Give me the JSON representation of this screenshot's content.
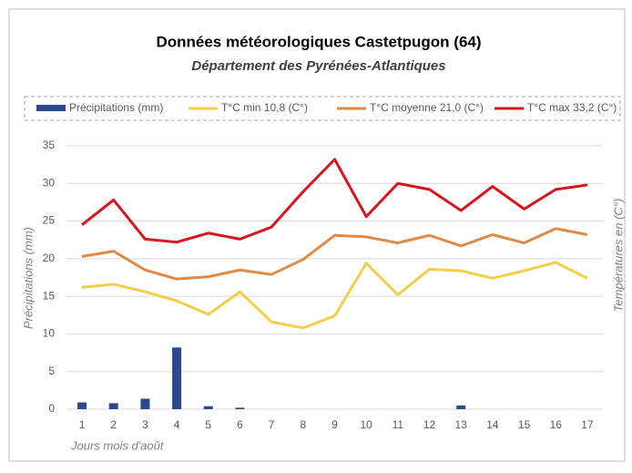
{
  "chart_data": {
    "type": "combo",
    "title": "Données météorologiques Castetpugon (64)",
    "subtitle": "Département des Pyrénées-Atlantiques",
    "y_label": "Précipitations (mm)",
    "y2_label": "Températures en (C°)",
    "x_label": "Jours mois d'août",
    "categories": [
      "1",
      "2",
      "3",
      "4",
      "5",
      "6",
      "7",
      "8",
      "9",
      "10",
      "11",
      "12",
      "13",
      "14",
      "15",
      "16",
      "17"
    ],
    "ylim": [
      0,
      35
    ],
    "yticks": [
      0,
      5,
      10,
      15,
      20,
      25,
      30,
      35
    ],
    "grid": true,
    "legend": "top",
    "series": [
      {
        "name": "Précipitations (mm)",
        "type": "bar",
        "color": "#2a4a8c",
        "values": [
          0.9,
          0.8,
          1.4,
          8.2,
          0.4,
          0.2,
          0,
          0,
          0,
          0,
          0,
          0,
          0.5,
          0,
          0,
          0,
          0
        ]
      },
      {
        "name": "T°C min 10,8 (C°)",
        "type": "line",
        "color": "#f5cd4a",
        "values": [
          16.2,
          16.6,
          15.6,
          14.4,
          12.6,
          15.6,
          11.6,
          10.8,
          12.4,
          19.4,
          15.2,
          18.6,
          18.4,
          17.4,
          18.4,
          19.5,
          17.4
        ]
      },
      {
        "name": "T°C moyenne 21,0 (C°)",
        "type": "line",
        "color": "#e08a45",
        "values": [
          20.3,
          21.0,
          18.5,
          17.3,
          17.6,
          18.5,
          17.9,
          19.9,
          23.1,
          22.9,
          22.1,
          23.1,
          21.7,
          23.2,
          22.1,
          24.0,
          23.2
        ]
      },
      {
        "name": "T°C max 33,2 (C°)",
        "type": "line",
        "color": "#d9141c",
        "values": [
          24.5,
          27.8,
          22.6,
          22.2,
          23.4,
          22.6,
          24.2,
          28.9,
          33.2,
          25.6,
          30.0,
          29.2,
          26.4,
          29.6,
          26.6,
          29.2,
          29.8
        ]
      }
    ]
  }
}
